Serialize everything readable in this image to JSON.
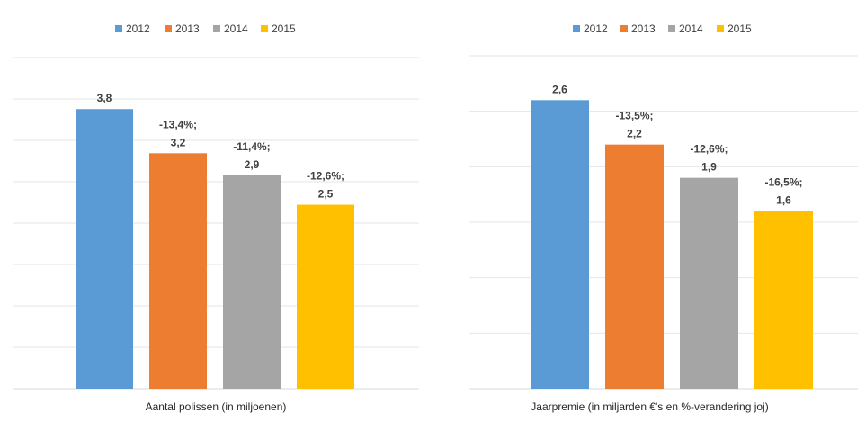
{
  "legend": [
    "2012",
    "2013",
    "2014",
    "2015"
  ],
  "colors": {
    "2012": "#5b9bd5",
    "2013": "#ed7d31",
    "2014": "#a5a5a5",
    "2015": "#ffc000"
  },
  "chart_data": [
    {
      "type": "bar",
      "categories": [
        "2012",
        "2013",
        "2014",
        "2015"
      ],
      "values": [
        3.8,
        3.2,
        2.9,
        2.5
      ],
      "data_labels": [
        "3,8",
        "-13,4%;\n3,2",
        "-11,4%;\n2,9",
        "-12,6%;\n2,5"
      ],
      "xlabel": "Aantal polissen (in miljoenen)",
      "ylim": [
        0,
        4.5
      ],
      "grid": true,
      "legend_position": "top"
    },
    {
      "type": "bar",
      "categories": [
        "2012",
        "2013",
        "2014",
        "2015"
      ],
      "values": [
        2.6,
        2.2,
        1.9,
        1.6
      ],
      "data_labels": [
        "2,6",
        "-13,5%;\n2,2",
        "-12,6%;\n1,9",
        "-16,5%;\n1,6"
      ],
      "xlabel": "Jaarpremie (in miljarden €'s en %-verandering joj)",
      "ylim": [
        0,
        3.0
      ],
      "grid": true,
      "legend_position": "top"
    }
  ]
}
